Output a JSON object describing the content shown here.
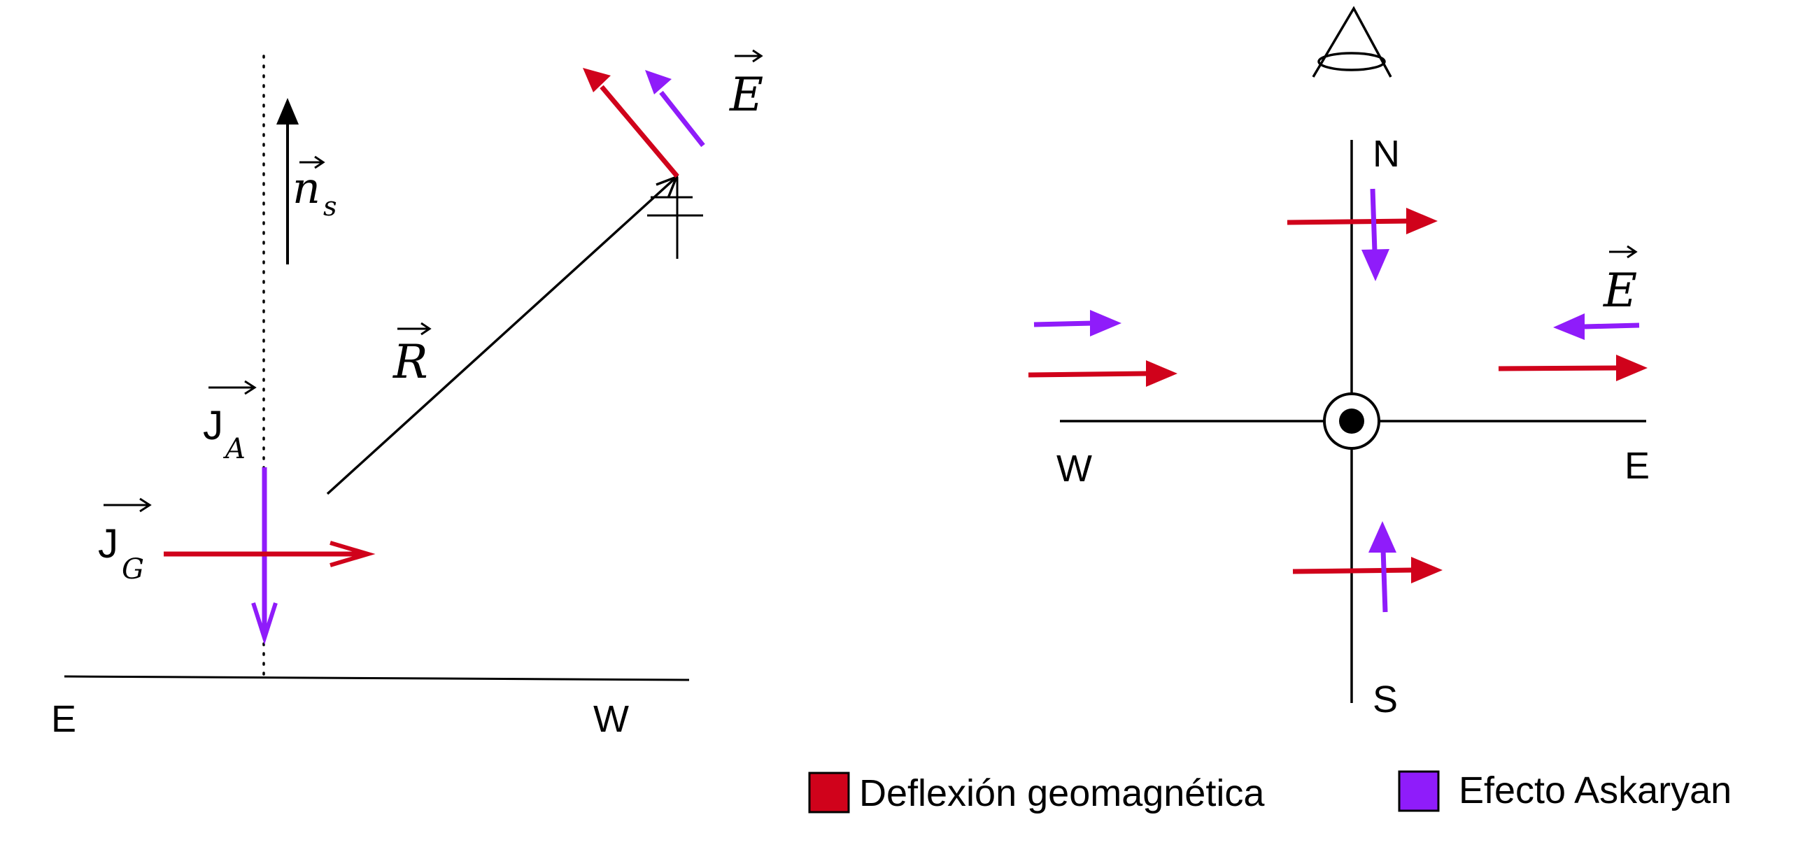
{
  "colors": {
    "geomagnetic": "#d0021b",
    "askaryan": "#8f1cfa",
    "ink": "#000000"
  },
  "left_panel": {
    "label_east": "E",
    "label_west": "W",
    "normal_vector": {
      "symbol": "n",
      "subscript": "s"
    },
    "position_vector": {
      "symbol": "R"
    },
    "field_vector": {
      "symbol": "E"
    },
    "askaryan_current": {
      "symbol": "J",
      "subscript": "A"
    },
    "geomagnetic_current": {
      "symbol": "J",
      "subscript": "G"
    }
  },
  "right_panel": {
    "label_north": "N",
    "label_south": "S",
    "label_west": "W",
    "label_east": "E",
    "field_vector": {
      "symbol": "E"
    },
    "center_icon": "dot-in-circle-icon",
    "observer_icon": "eye-icon"
  },
  "legend": {
    "items": [
      {
        "label": "Deflexión geomagnética",
        "color": "#d0021b"
      },
      {
        "label": "Efecto Askaryan",
        "color": "#8f1cfa"
      }
    ]
  }
}
